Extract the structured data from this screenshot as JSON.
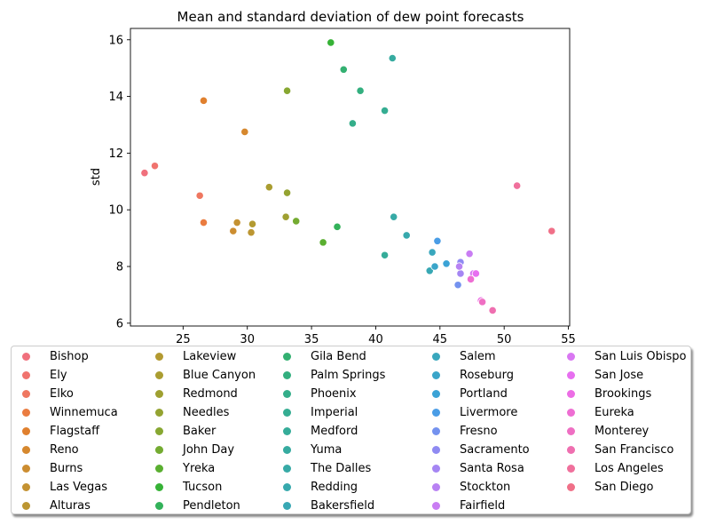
{
  "chart_data": {
    "type": "scatter",
    "title": "Mean and standard deviation of dew point forecasts",
    "xlabel": "",
    "ylabel": "std",
    "xlim": [
      20.9,
      55.1
    ],
    "ylim": [
      5.9,
      16.4
    ],
    "xticks": [
      25,
      30,
      35,
      40,
      45,
      50,
      55
    ],
    "yticks": [
      6,
      8,
      10,
      12,
      14,
      16
    ],
    "grid": false,
    "legend_placement": "below",
    "series": [
      {
        "name": "Bishop",
        "color": "#f0707d",
        "points": [
          [
            22.0,
            11.3
          ]
        ]
      },
      {
        "name": "Ely",
        "color": "#f0736e",
        "points": [
          [
            22.8,
            11.55
          ]
        ]
      },
      {
        "name": "Elko",
        "color": "#ef7760",
        "points": [
          [
            26.3,
            10.5
          ]
        ]
      },
      {
        "name": "Winnemuca",
        "color": "#ea7c40",
        "points": [
          [
            26.6,
            9.55
          ]
        ]
      },
      {
        "name": "Flagstaff",
        "color": "#e0802e",
        "points": [
          [
            26.6,
            13.85
          ]
        ]
      },
      {
        "name": "Reno",
        "color": "#d6882e",
        "points": [
          [
            29.8,
            12.75
          ]
        ]
      },
      {
        "name": "Burns",
        "color": "#cc8d30",
        "points": [
          [
            28.9,
            9.25
          ]
        ]
      },
      {
        "name": "Las Vegas",
        "color": "#c49232",
        "points": [
          [
            29.2,
            9.55
          ]
        ]
      },
      {
        "name": "Alturas",
        "color": "#bc9632",
        "points": [
          [
            30.3,
            9.2
          ]
        ]
      },
      {
        "name": "Lakeview",
        "color": "#b39a31",
        "points": [
          [
            30.4,
            9.5
          ]
        ]
      },
      {
        "name": "Blue Canyon",
        "color": "#aa9d31",
        "points": [
          [
            31.7,
            10.8
          ]
        ]
      },
      {
        "name": "Redmond",
        "color": "#9fa031",
        "points": [
          [
            33.0,
            9.75
          ]
        ]
      },
      {
        "name": "Needles",
        "color": "#94a331",
        "points": [
          [
            33.1,
            10.6
          ]
        ]
      },
      {
        "name": "Baker",
        "color": "#87a731",
        "points": [
          [
            33.1,
            14.2
          ]
        ]
      },
      {
        "name": "John Day",
        "color": "#74ab31",
        "points": [
          [
            33.8,
            9.6
          ]
        ]
      },
      {
        "name": "Yreka",
        "color": "#5aaf30",
        "points": [
          [
            35.9,
            8.85
          ]
        ]
      },
      {
        "name": "Tucson",
        "color": "#36b236",
        "points": [
          [
            36.5,
            15.9
          ]
        ]
      },
      {
        "name": "Pendleton",
        "color": "#33b25a",
        "points": [
          [
            37.0,
            9.4
          ]
        ]
      },
      {
        "name": "Gila Bend",
        "color": "#33b071",
        "points": [
          [
            37.5,
            14.95
          ]
        ]
      },
      {
        "name": "Palm Springs",
        "color": "#33af7f",
        "points": [
          [
            38.8,
            14.2
          ]
        ]
      },
      {
        "name": "Phoenix",
        "color": "#34ae8a",
        "points": [
          [
            38.2,
            13.05
          ]
        ]
      },
      {
        "name": "Imperial",
        "color": "#35ad92",
        "points": [
          [
            40.7,
            13.5
          ]
        ]
      },
      {
        "name": "Medford",
        "color": "#35ac99",
        "points": [
          [
            40.7,
            8.4
          ]
        ]
      },
      {
        "name": "Yuma",
        "color": "#36aba0",
        "points": [
          [
            41.3,
            15.35
          ]
        ]
      },
      {
        "name": "The Dalles",
        "color": "#37aaa6",
        "points": [
          [
            41.4,
            9.75
          ]
        ]
      },
      {
        "name": "Redding",
        "color": "#37a9ad",
        "points": [
          [
            42.4,
            9.1
          ]
        ]
      },
      {
        "name": "Bakersfield",
        "color": "#38a8b4",
        "points": [
          [
            44.2,
            7.85
          ]
        ]
      },
      {
        "name": "Salem",
        "color": "#39a7bd",
        "points": [
          [
            44.4,
            8.5
          ]
        ]
      },
      {
        "name": "Roseburg",
        "color": "#3aa5c9",
        "points": [
          [
            44.6,
            8.0
          ]
        ]
      },
      {
        "name": "Portland",
        "color": "#3ba3d6",
        "points": [
          [
            45.5,
            8.1
          ]
        ]
      },
      {
        "name": "Livermore",
        "color": "#4a9de6",
        "points": [
          [
            44.8,
            8.9
          ]
        ]
      },
      {
        "name": "Fresno",
        "color": "#7492ef",
        "points": [
          [
            46.4,
            7.35
          ]
        ]
      },
      {
        "name": "Sacramento",
        "color": "#8f8af2",
        "points": [
          [
            46.6,
            8.15
          ]
        ]
      },
      {
        "name": "Santa Rosa",
        "color": "#a586f3",
        "points": [
          [
            46.6,
            7.75
          ]
        ]
      },
      {
        "name": "Stockton",
        "color": "#b882f3",
        "points": [
          [
            46.5,
            8.0
          ]
        ]
      },
      {
        "name": "Fairfield",
        "color": "#c97df3",
        "points": [
          [
            47.3,
            8.45
          ]
        ]
      },
      {
        "name": "San Luis Obispo",
        "color": "#d977f2",
        "points": [
          [
            47.6,
            7.75
          ]
        ]
      },
      {
        "name": "San Jose",
        "color": "#e76ff0",
        "points": [
          [
            47.8,
            7.75
          ]
        ]
      },
      {
        "name": "Brookings",
        "color": "#ec6de5",
        "points": [
          [
            48.2,
            6.8
          ]
        ]
      },
      {
        "name": "Eureka",
        "color": "#ee6ed3",
        "points": [
          [
            47.4,
            7.55
          ]
        ]
      },
      {
        "name": "Monterey",
        "color": "#ef6fc3",
        "points": [
          [
            48.3,
            6.75
          ]
        ]
      },
      {
        "name": "San Francisco",
        "color": "#ef6fb0",
        "points": [
          [
            49.1,
            6.45
          ]
        ]
      },
      {
        "name": "Los Angeles",
        "color": "#f0709c",
        "points": [
          [
            51.0,
            10.85
          ]
        ]
      },
      {
        "name": "San Diego",
        "color": "#f07088",
        "points": [
          [
            53.7,
            9.25
          ]
        ]
      }
    ]
  }
}
